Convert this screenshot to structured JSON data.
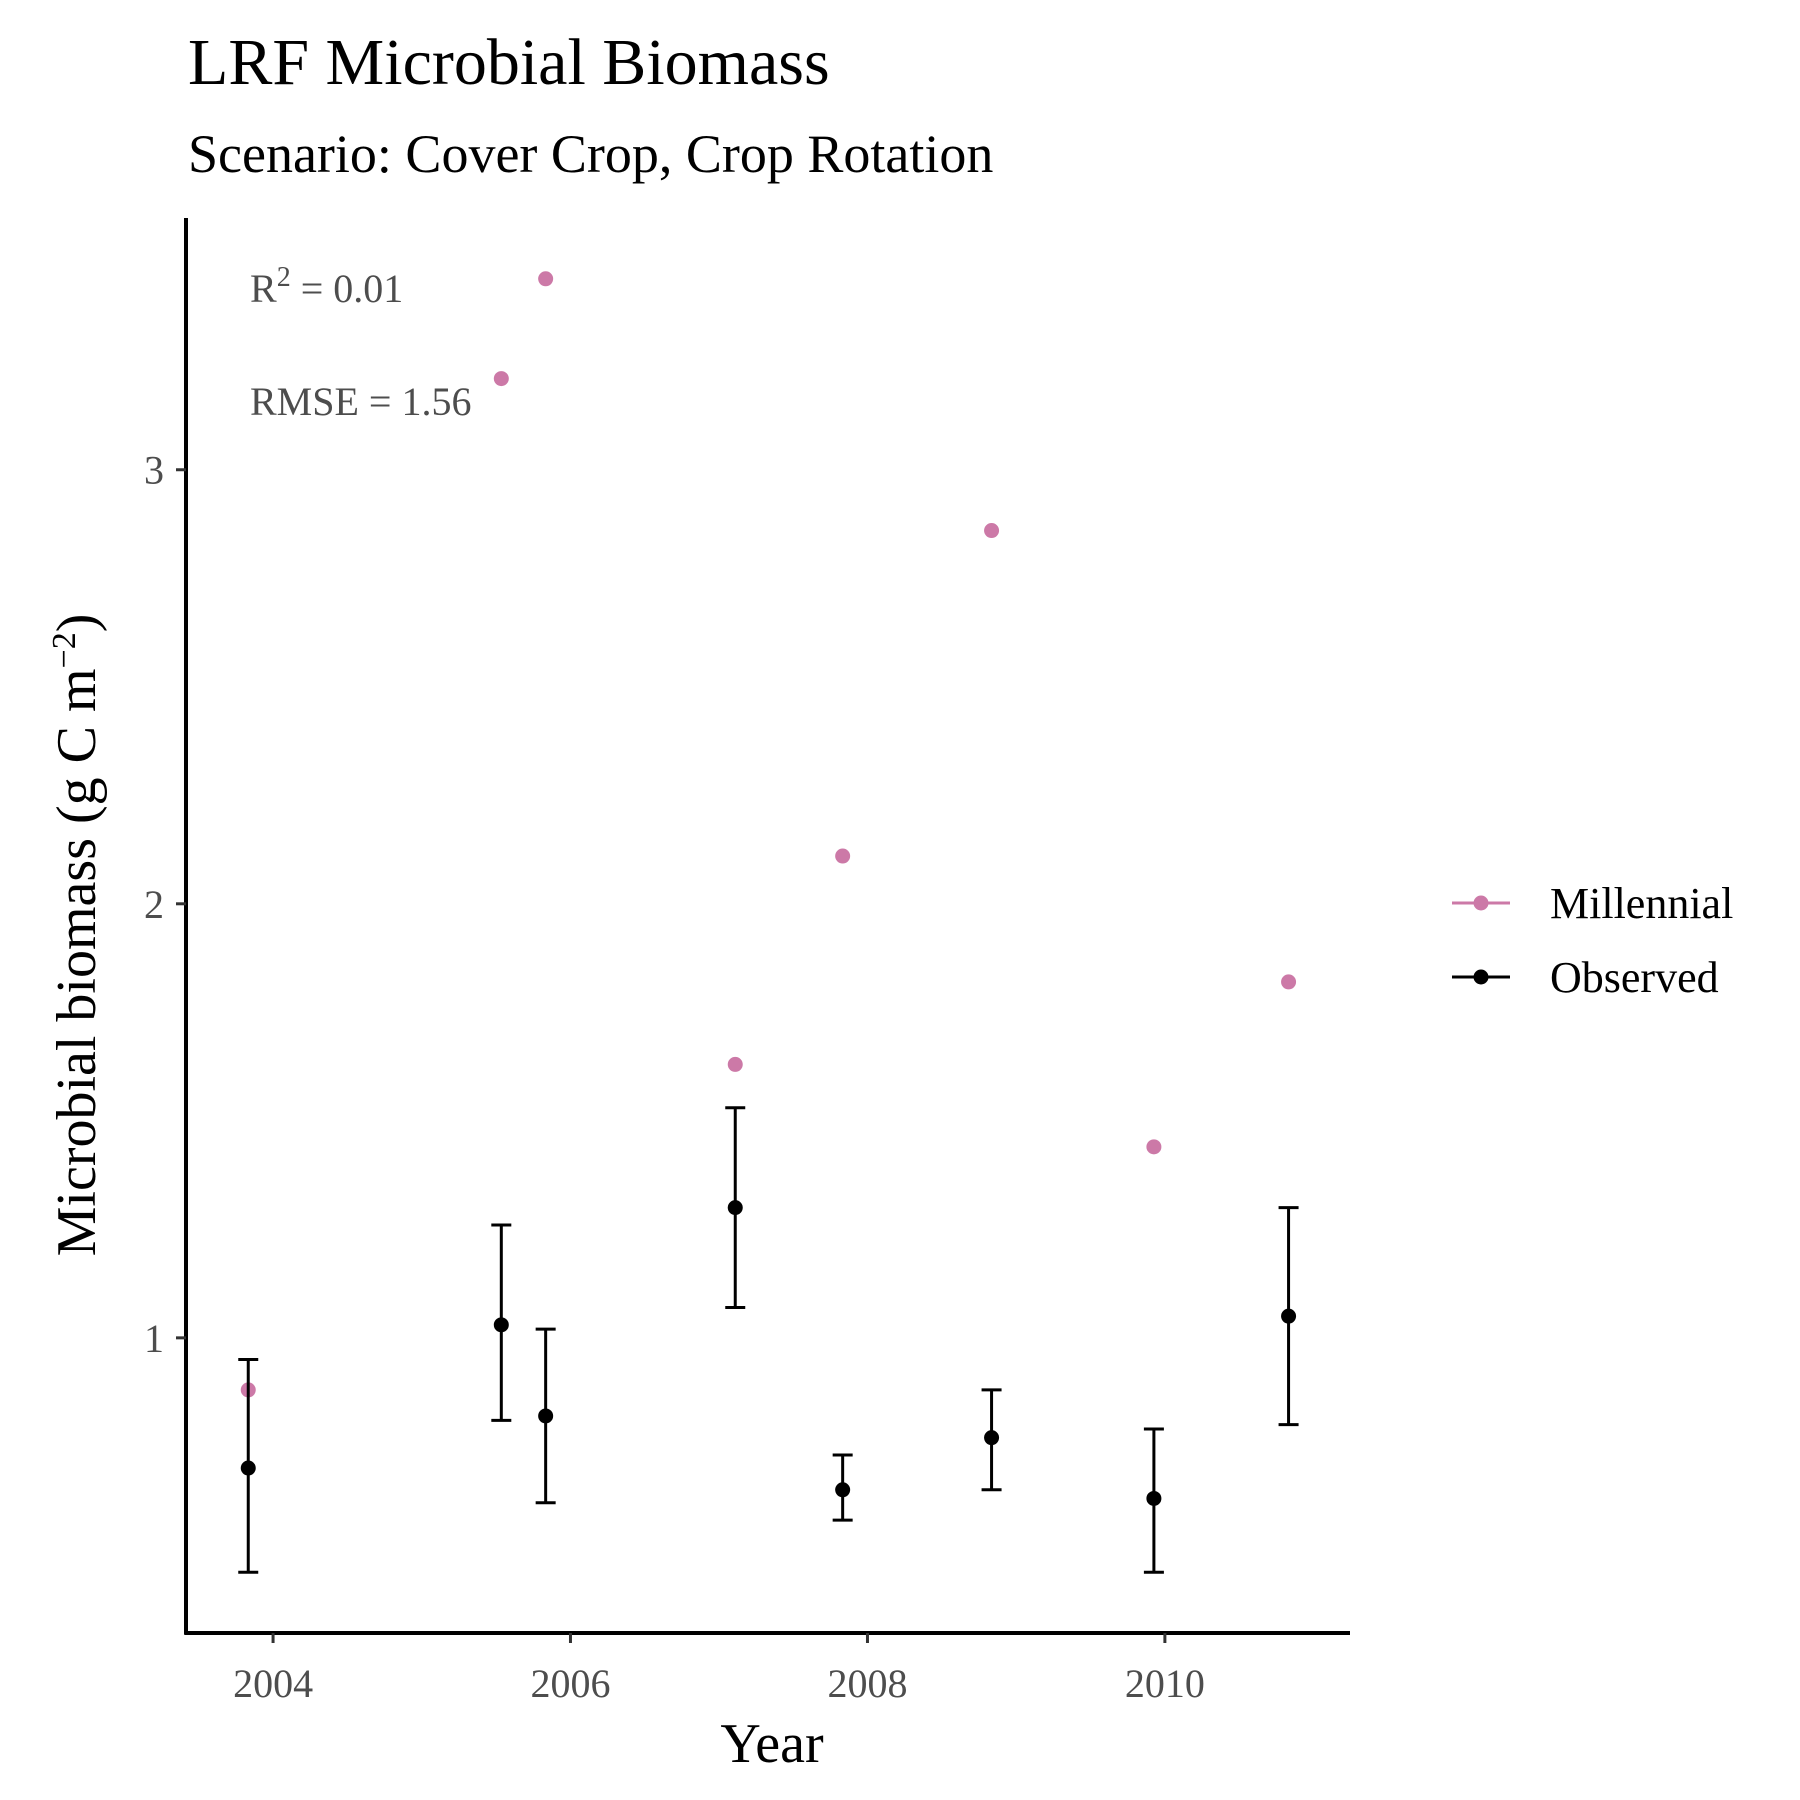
{
  "chart_data": {
    "type": "scatter",
    "title": "LRF Microbial Biomass",
    "subtitle": "Scenario: Cover Crop, Crop Rotation",
    "xlabel": "Year",
    "ylabel": "Microbial biomass (g C m",
    "ylabel_superscript": "−2",
    "ylabel_close": ")",
    "xlim": [
      "2003-06-01",
      "2011-04-01"
    ],
    "ylim": [
      0.32,
      3.58
    ],
    "x_ticks": [
      "2004",
      "2006",
      "2008",
      "2010"
    ],
    "y_ticks": [
      "1",
      "2",
      "3"
    ],
    "grid": false,
    "legend_position": "right",
    "annotations": {
      "r2_base": "R",
      "r2_sup": "2",
      "r2_rest": " = 0.01",
      "rmse": "RMSE = 1.56"
    },
    "series": [
      {
        "name": "Millennial",
        "color": "#cc79a7",
        "points": [
          {
            "x": "2003-11-01",
            "y": 0.88
          },
          {
            "x": "2005-07-15",
            "y": 3.21
          },
          {
            "x": "2005-11-01",
            "y": 3.44
          },
          {
            "x": "2007-02-10",
            "y": 1.63
          },
          {
            "x": "2007-11-01",
            "y": 2.11
          },
          {
            "x": "2008-11-01",
            "y": 2.86
          },
          {
            "x": "2009-12-05",
            "y": 1.44
          },
          {
            "x": "2010-11-01",
            "y": 1.82
          }
        ]
      },
      {
        "name": "Observed",
        "color": "#000000",
        "points": [
          {
            "x": "2003-11-01",
            "y": 0.7,
            "ymin": 0.46,
            "ymax": 0.95
          },
          {
            "x": "2005-07-15",
            "y": 1.03,
            "ymin": 0.81,
            "ymax": 1.26
          },
          {
            "x": "2005-11-01",
            "y": 0.82,
            "ymin": 0.62,
            "ymax": 1.02
          },
          {
            "x": "2007-02-10",
            "y": 1.3,
            "ymin": 1.07,
            "ymax": 1.53
          },
          {
            "x": "2007-11-01",
            "y": 0.65,
            "ymin": 0.58,
            "ymax": 0.73
          },
          {
            "x": "2008-11-01",
            "y": 0.77,
            "ymin": 0.65,
            "ymax": 0.88
          },
          {
            "x": "2009-12-05",
            "y": 0.63,
            "ymin": 0.46,
            "ymax": 0.79
          },
          {
            "x": "2010-11-01",
            "y": 1.05,
            "ymin": 0.8,
            "ymax": 1.3
          }
        ]
      }
    ]
  }
}
